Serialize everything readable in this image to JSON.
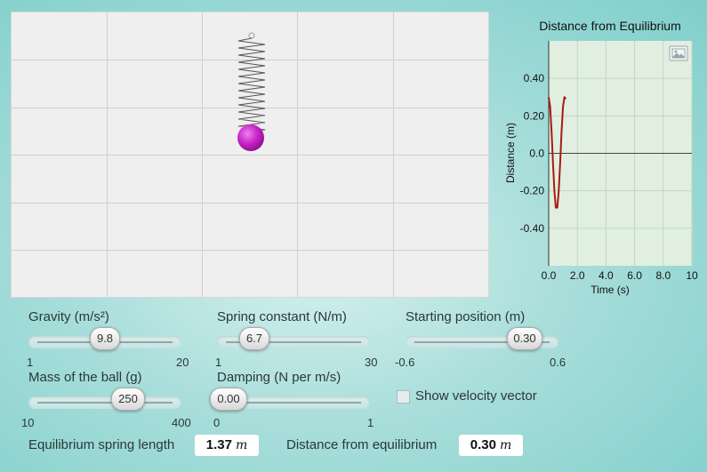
{
  "chart_data": {
    "type": "line",
    "title": "Distance from Equilibrium",
    "xlabel": "Time (s)",
    "ylabel": "Distance (m)",
    "xlim": [
      0,
      10
    ],
    "ylim": [
      -0.6,
      0.6
    ],
    "x_ticks": [
      "0.0",
      "2.0",
      "4.0",
      "6.0",
      "8.0",
      "10"
    ],
    "y_ticks": [
      "0.40",
      "0.20",
      "0.0",
      "-0.20",
      "-0.40"
    ],
    "series": [
      {
        "color": "#aa1a0f",
        "x": [
          0.0,
          0.1,
          0.2,
          0.3,
          0.4,
          0.5,
          0.6,
          0.7,
          0.8,
          0.9,
          1.0,
          1.1,
          1.2
        ],
        "y": [
          0.3,
          0.25,
          0.12,
          -0.05,
          -0.2,
          -0.29,
          -0.29,
          -0.2,
          -0.05,
          0.12,
          0.25,
          0.3,
          0.29
        ]
      }
    ],
    "grid": true,
    "equilibrium_line": 0
  },
  "chart_icon": "image-snapshot-icon",
  "ball_color": "#c624c8",
  "sliders": {
    "gravity": {
      "label": "Gravity (m/s²)",
      "value": "9.8",
      "min": "1",
      "max": "20"
    },
    "spring": {
      "label": "Spring constant (N/m)",
      "value": "6.7",
      "min": "1",
      "max": "30"
    },
    "start": {
      "label": "Starting position (m)",
      "value": "0.30",
      "min": "-0.6",
      "max": "0.6"
    },
    "mass": {
      "label": "Mass of the ball (g)",
      "value": "250",
      "min": "10",
      "max": "400"
    },
    "damping": {
      "label": "Damping (N per m/s)",
      "value": "0.00",
      "min": "0",
      "max": "1"
    }
  },
  "velocity_checkbox": {
    "label": "Show velocity vector",
    "checked": false
  },
  "readouts": {
    "equilibrium": {
      "label": "Equilibrium spring length",
      "value": "1.37",
      "unit": "m"
    },
    "distance": {
      "label": "Distance from equilibrium",
      "value": "0.30",
      "unit": "m"
    }
  }
}
